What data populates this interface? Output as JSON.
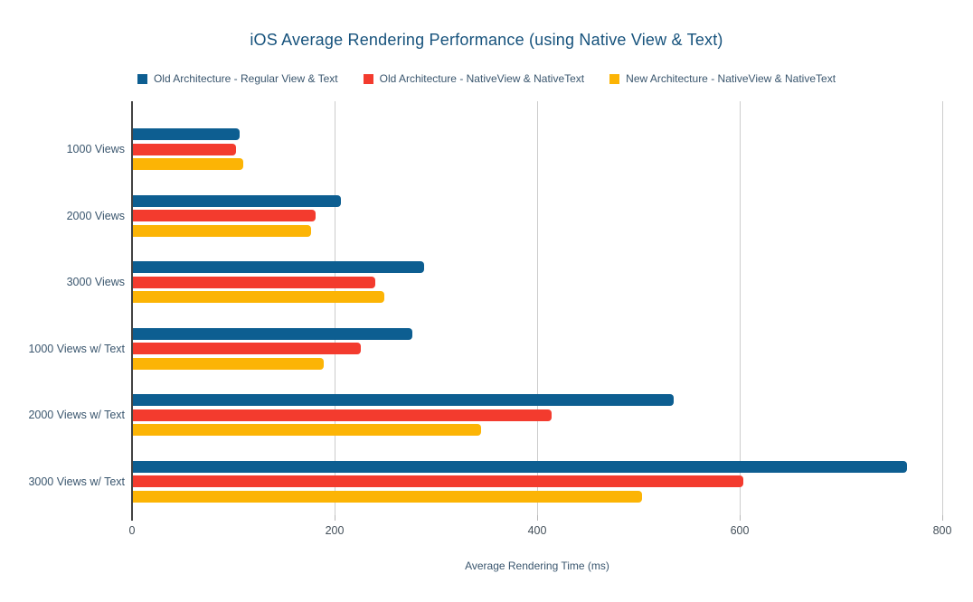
{
  "chart_data": {
    "type": "bar",
    "orientation": "horizontal",
    "title": "iOS Average Rendering Performance (using Native View & Text)",
    "xlabel": "Average Rendering Time (ms)",
    "xlim": [
      0,
      800
    ],
    "xticks": [
      0,
      200,
      400,
      600,
      800
    ],
    "grid": true,
    "legend_position": "top",
    "categories": [
      "1000 Views",
      "2000 Views",
      "3000 Views",
      "1000 Views w/ Text",
      "2000 Views w/ Text",
      "3000 Views w/ Text"
    ],
    "series": [
      {
        "name": "Old Architecture - Regular View & Text",
        "color": "#0d5e91",
        "values": [
          106,
          206,
          288,
          277,
          535,
          765
        ]
      },
      {
        "name": "Old Architecture - NativeView & NativeText",
        "color": "#f33b2e",
        "values": [
          103,
          181,
          240,
          226,
          414,
          604
        ]
      },
      {
        "name": "New Architecture - NativeView & NativeText",
        "color": "#fcb405",
        "values": [
          110,
          177,
          249,
          189,
          345,
          504
        ]
      }
    ]
  },
  "colors": {
    "title_text": "#16527c",
    "label_text": "#3a566e",
    "tick_text": "#44505a",
    "gridline": "#cccccc",
    "axis_baseline": "#424242",
    "background": "#ffffff"
  }
}
